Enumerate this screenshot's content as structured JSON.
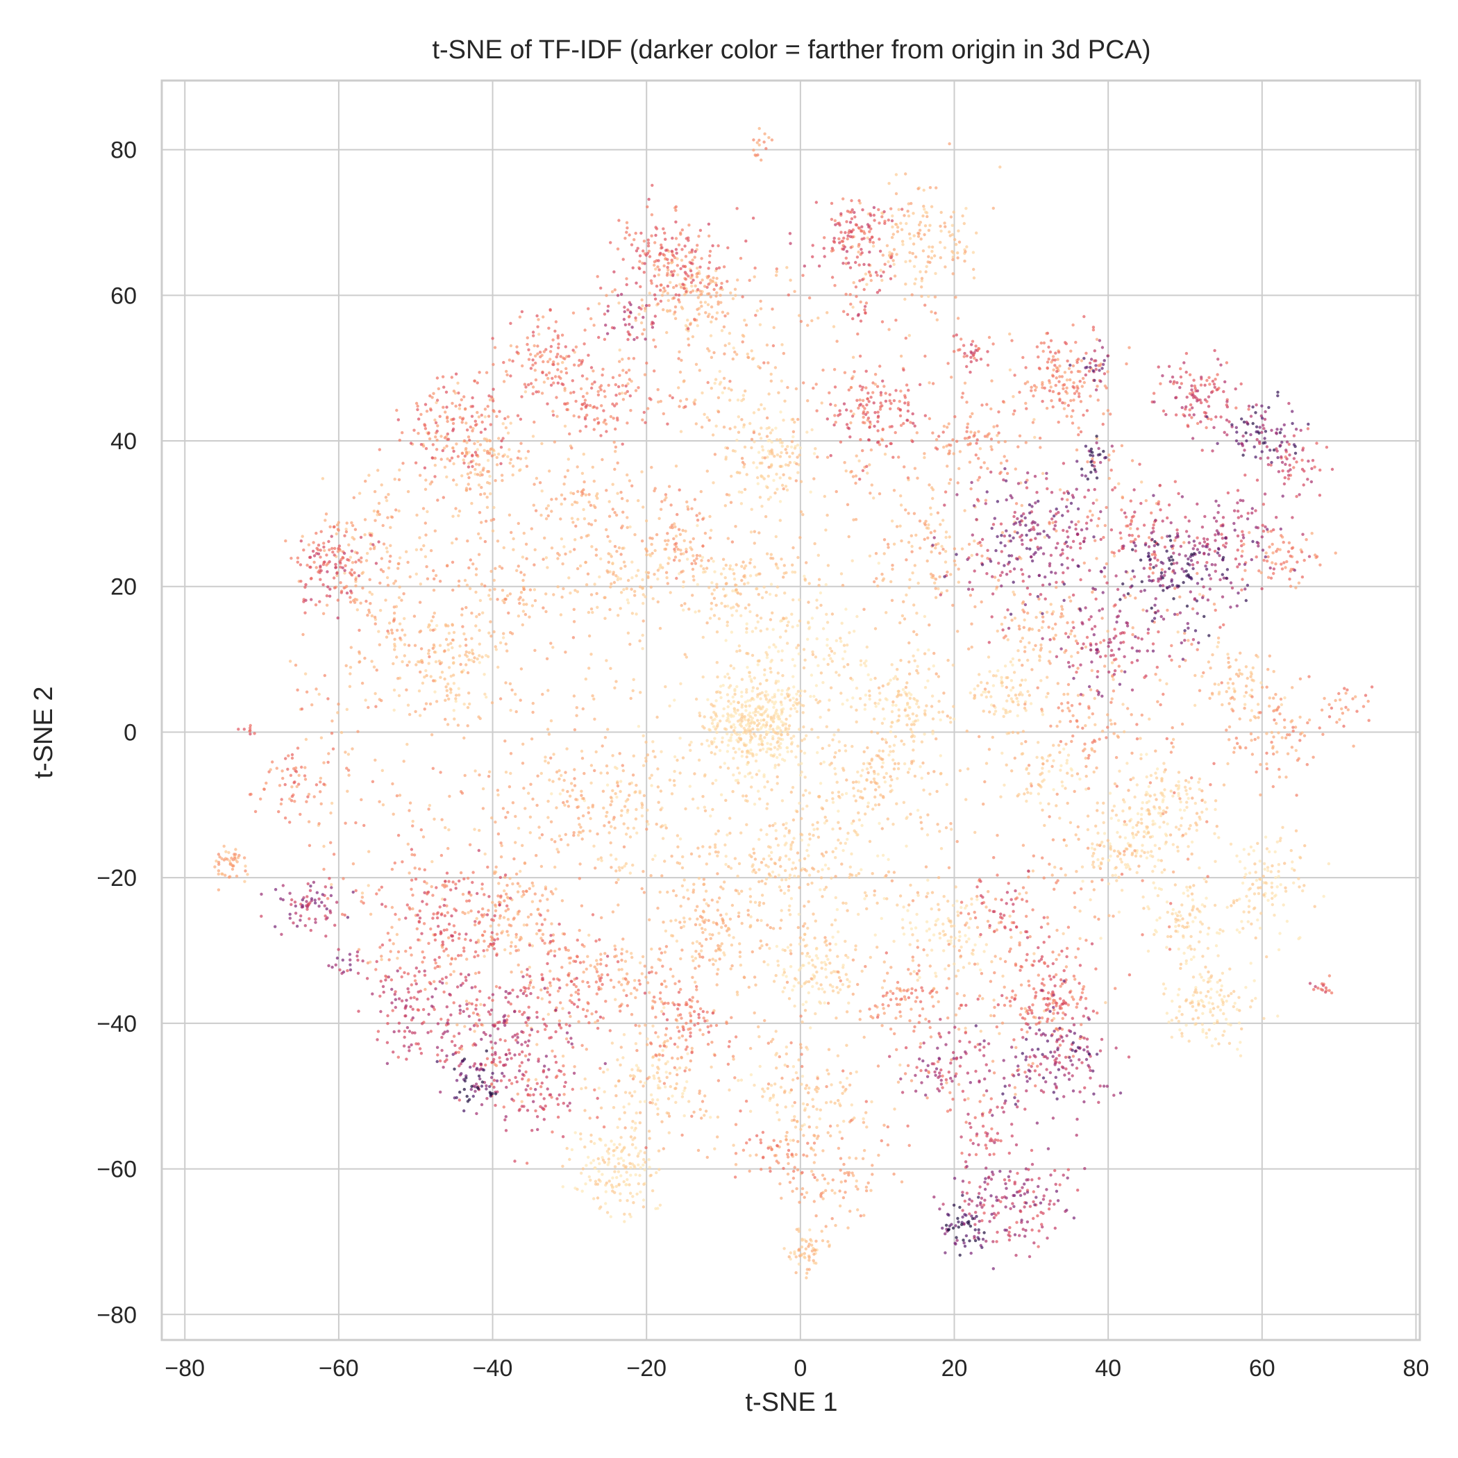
{
  "chart_data": {
    "type": "scatter",
    "title": "t-SNE of TF-IDF (darker color = farther from origin in 3d PCA)",
    "xlabel": "t-SNE 1",
    "ylabel": "t-SNE 2",
    "xlim": [
      -83,
      80.5
    ],
    "ylim": [
      -83.5,
      89.5
    ],
    "xticks": [
      -80,
      -60,
      -40,
      -20,
      0,
      20,
      40,
      60,
      80
    ],
    "xtick_labels": [
      "−80",
      "−60",
      "−40",
      "−20",
      "0",
      "20",
      "40",
      "60",
      "80"
    ],
    "yticks": [
      -80,
      -60,
      -40,
      -20,
      0,
      20,
      40,
      60,
      80
    ],
    "ytick_labels": [
      "−80",
      "−60",
      "−40",
      "−20",
      "0",
      "20",
      "40",
      "60",
      "80"
    ],
    "grid": true,
    "legend": "none",
    "colormap": "magma_r",
    "colormap_stops": [
      "#fde8b8",
      "#fcc28a",
      "#f89a70",
      "#ef6f61",
      "#d9495e",
      "#b3336c",
      "#7d2577",
      "#4a1868",
      "#1d0c3c"
    ],
    "clusters": [
      {
        "x": -5.5,
        "y": 1.5,
        "spread": 3.5,
        "count": 420,
        "darkness": 0.03
      },
      {
        "x": -5,
        "y": 80.5,
        "spread": 0.8,
        "count": 15,
        "darkness": 0.25
      },
      {
        "x": -17,
        "y": 65,
        "spread": 3.5,
        "count": 180,
        "darkness": 0.4
      },
      {
        "x": -14,
        "y": 60,
        "spread": 3.0,
        "count": 120,
        "darkness": 0.15
      },
      {
        "x": 7,
        "y": 68,
        "spread": 3.0,
        "count": 130,
        "darkness": 0.45
      },
      {
        "x": 16,
        "y": 68,
        "spread": 4.0,
        "count": 150,
        "darkness": 0.15
      },
      {
        "x": 7.5,
        "y": 58,
        "spread": 0.8,
        "count": 12,
        "darkness": 0.45
      },
      {
        "x": -33,
        "y": 51,
        "spread": 3.0,
        "count": 110,
        "darkness": 0.35
      },
      {
        "x": -25,
        "y": 45,
        "spread": 3.5,
        "count": 110,
        "darkness": 0.35
      },
      {
        "x": -22,
        "y": 57,
        "spread": 2.0,
        "count": 40,
        "darkness": 0.55
      },
      {
        "x": -45,
        "y": 42,
        "spread": 3.5,
        "count": 140,
        "darkness": 0.38
      },
      {
        "x": -42,
        "y": 37,
        "spread": 3.5,
        "count": 110,
        "darkness": 0.15
      },
      {
        "x": -4,
        "y": 38,
        "spread": 3.0,
        "count": 110,
        "darkness": 0.05
      },
      {
        "x": 10,
        "y": 44,
        "spread": 3.5,
        "count": 130,
        "darkness": 0.42
      },
      {
        "x": 22,
        "y": 52,
        "spread": 1.2,
        "count": 30,
        "darkness": 0.45
      },
      {
        "x": 34,
        "y": 49,
        "spread": 3.0,
        "count": 140,
        "darkness": 0.32
      },
      {
        "x": 38,
        "y": 50,
        "spread": 1.2,
        "count": 25,
        "darkness": 0.7
      },
      {
        "x": 38,
        "y": 37,
        "spread": 1.2,
        "count": 30,
        "darkness": 0.82
      },
      {
        "x": 52,
        "y": 46,
        "spread": 3.0,
        "count": 110,
        "darkness": 0.5
      },
      {
        "x": 60,
        "y": 41,
        "spread": 2.5,
        "count": 80,
        "darkness": 0.78
      },
      {
        "x": 64,
        "y": 37,
        "spread": 2.0,
        "count": 50,
        "darkness": 0.5
      },
      {
        "x": 30,
        "y": 26,
        "spread": 4.5,
        "count": 230,
        "darkness": 0.68
      },
      {
        "x": 49,
        "y": 22,
        "spread": 3.5,
        "count": 180,
        "darkness": 0.8
      },
      {
        "x": 56,
        "y": 27,
        "spread": 4.0,
        "count": 110,
        "darkness": 0.6
      },
      {
        "x": 63,
        "y": 24,
        "spread": 2.5,
        "count": 60,
        "darkness": 0.3
      },
      {
        "x": 40,
        "y": 12,
        "spread": 3.5,
        "count": 110,
        "darkness": 0.6
      },
      {
        "x": -61,
        "y": 23,
        "spread": 2.5,
        "count": 110,
        "darkness": 0.45
      },
      {
        "x": -56,
        "y": 26,
        "spread": 3.5,
        "count": 90,
        "darkness": 0.2
      },
      {
        "x": -52,
        "y": 12,
        "spread": 4.5,
        "count": 90,
        "darkness": 0.18
      },
      {
        "x": -45,
        "y": 9,
        "spread": 3.5,
        "count": 100,
        "darkness": 0.1
      },
      {
        "x": -38,
        "y": 20,
        "spread": 4.5,
        "count": 80,
        "darkness": 0.2
      },
      {
        "x": -28,
        "y": 30,
        "spread": 4.0,
        "count": 90,
        "darkness": 0.2
      },
      {
        "x": -21,
        "y": 21,
        "spread": 3.5,
        "count": 90,
        "darkness": 0.1
      },
      {
        "x": -8,
        "y": 20,
        "spread": 3.5,
        "count": 100,
        "darkness": 0.1
      },
      {
        "x": -16,
        "y": 27,
        "spread": 3.0,
        "count": 70,
        "darkness": 0.25
      },
      {
        "x": 13,
        "y": 4,
        "spread": 3.0,
        "count": 110,
        "darkness": 0.05
      },
      {
        "x": 27,
        "y": 6,
        "spread": 3.0,
        "count": 80,
        "darkness": 0.05
      },
      {
        "x": 57,
        "y": 7,
        "spread": 3.0,
        "count": 70,
        "darkness": 0.12
      },
      {
        "x": 63,
        "y": 0,
        "spread": 3.5,
        "count": 80,
        "darkness": 0.25
      },
      {
        "x": 71,
        "y": 4,
        "spread": 1.2,
        "count": 25,
        "darkness": 0.3
      },
      {
        "x": -72,
        "y": 0.4,
        "spread": 0.6,
        "count": 8,
        "darkness": 0.45
      },
      {
        "x": -66,
        "y": -8,
        "spread": 2.5,
        "count": 60,
        "darkness": 0.3
      },
      {
        "x": -74,
        "y": -18,
        "spread": 1.2,
        "count": 45,
        "darkness": 0.2
      },
      {
        "x": -64,
        "y": -24,
        "spread": 2.0,
        "count": 70,
        "darkness": 0.62
      },
      {
        "x": -59,
        "y": -32,
        "spread": 1.0,
        "count": 18,
        "darkness": 0.62
      },
      {
        "x": -46,
        "y": -27,
        "spread": 4.5,
        "count": 170,
        "darkness": 0.42
      },
      {
        "x": -50,
        "y": -38,
        "spread": 3.5,
        "count": 110,
        "darkness": 0.55
      },
      {
        "x": -38,
        "y": -42,
        "spread": 4.5,
        "count": 190,
        "darkness": 0.55
      },
      {
        "x": -42,
        "y": -48,
        "spread": 2.0,
        "count": 60,
        "darkness": 0.85
      },
      {
        "x": -34,
        "y": -50,
        "spread": 3.0,
        "count": 70,
        "darkness": 0.5
      },
      {
        "x": -37,
        "y": -25,
        "spread": 3.5,
        "count": 110,
        "darkness": 0.2
      },
      {
        "x": -29,
        "y": -10,
        "spread": 4.0,
        "count": 100,
        "darkness": 0.2
      },
      {
        "x": -30,
        "y": -34,
        "spread": 3.5,
        "count": 90,
        "darkness": 0.4
      },
      {
        "x": -22,
        "y": -35,
        "spread": 4.0,
        "count": 90,
        "darkness": 0.25
      },
      {
        "x": -24,
        "y": -60,
        "spread": 3.0,
        "count": 160,
        "darkness": 0.05
      },
      {
        "x": -19,
        "y": -47,
        "spread": 3.5,
        "count": 100,
        "darkness": 0.08
      },
      {
        "x": -11,
        "y": -27,
        "spread": 3.0,
        "count": 110,
        "darkness": 0.15
      },
      {
        "x": -14,
        "y": -40,
        "spread": 3.0,
        "count": 80,
        "darkness": 0.35
      },
      {
        "x": -3,
        "y": -19,
        "spread": 3.0,
        "count": 90,
        "darkness": 0.1
      },
      {
        "x": 2,
        "y": -33,
        "spread": 3.0,
        "count": 110,
        "darkness": 0.05
      },
      {
        "x": 0,
        "y": -50,
        "spread": 3.5,
        "count": 90,
        "darkness": 0.08
      },
      {
        "x": -2,
        "y": -58,
        "spread": 2.0,
        "count": 50,
        "darkness": 0.3
      },
      {
        "x": 4,
        "y": -62,
        "spread": 3.0,
        "count": 80,
        "darkness": 0.2
      },
      {
        "x": 1,
        "y": -71,
        "spread": 1.5,
        "count": 55,
        "darkness": 0.12
      },
      {
        "x": 10,
        "y": -6,
        "spread": 3.0,
        "count": 90,
        "darkness": 0.1
      },
      {
        "x": 19,
        "y": -28,
        "spread": 3.0,
        "count": 90,
        "darkness": 0.05
      },
      {
        "x": 13,
        "y": -37,
        "spread": 3.0,
        "count": 80,
        "darkness": 0.3
      },
      {
        "x": 19,
        "y": -46,
        "spread": 3.0,
        "count": 80,
        "darkness": 0.58
      },
      {
        "x": 32,
        "y": -36,
        "spread": 3.5,
        "count": 160,
        "darkness": 0.4
      },
      {
        "x": 33,
        "y": -45,
        "spread": 3.5,
        "count": 150,
        "darkness": 0.7
      },
      {
        "x": 28,
        "y": -64,
        "spread": 3.5,
        "count": 160,
        "darkness": 0.6
      },
      {
        "x": 21,
        "y": -68,
        "spread": 1.8,
        "count": 60,
        "darkness": 0.9
      },
      {
        "x": 24,
        "y": -55,
        "spread": 2.0,
        "count": 40,
        "darkness": 0.5
      },
      {
        "x": 26,
        "y": -24,
        "spread": 2.5,
        "count": 50,
        "darkness": 0.45
      },
      {
        "x": 31,
        "y": -6,
        "spread": 2.5,
        "count": 60,
        "darkness": 0.05
      },
      {
        "x": 47,
        "y": -10,
        "spread": 3.0,
        "count": 120,
        "darkness": 0.05
      },
      {
        "x": 42,
        "y": -16,
        "spread": 3.0,
        "count": 110,
        "darkness": 0.05
      },
      {
        "x": 60,
        "y": -21,
        "spread": 3.5,
        "count": 120,
        "darkness": 0.05
      },
      {
        "x": 50,
        "y": -26,
        "spread": 3.0,
        "count": 80,
        "darkness": 0.05
      },
      {
        "x": 53,
        "y": -37,
        "spread": 3.0,
        "count": 130,
        "darkness": 0.04
      },
      {
        "x": 68,
        "y": -35,
        "spread": 0.8,
        "count": 15,
        "darkness": 0.45
      },
      {
        "x": 38,
        "y": 1,
        "spread": 3.0,
        "count": 60,
        "darkness": 0.25
      },
      {
        "x": 44,
        "y": 28,
        "spread": 3.0,
        "count": 60,
        "darkness": 0.45
      },
      {
        "x": 32,
        "y": 14,
        "spread": 3.0,
        "count": 60,
        "darkness": 0.2
      },
      {
        "x": 15,
        "y": 25,
        "spread": 4.0,
        "count": 80,
        "darkness": 0.18
      },
      {
        "x": 22,
        "y": 40,
        "spread": 3.0,
        "count": 70,
        "darkness": 0.3
      },
      {
        "x": -10,
        "y": 48,
        "spread": 4.0,
        "count": 60,
        "darkness": 0.12
      },
      {
        "x": 0,
        "y": 12,
        "spread": 5.0,
        "count": 110,
        "darkness": 0.02
      },
      {
        "x": -20,
        "y": -10,
        "spread": 6.0,
        "count": 120,
        "darkness": 0.08
      },
      {
        "x": 5,
        "y": -15,
        "spread": 6.0,
        "count": 110,
        "darkness": 0.05
      }
    ],
    "background_points": {
      "count": 1800,
      "radius": 62,
      "darkness": 0.08
    }
  }
}
